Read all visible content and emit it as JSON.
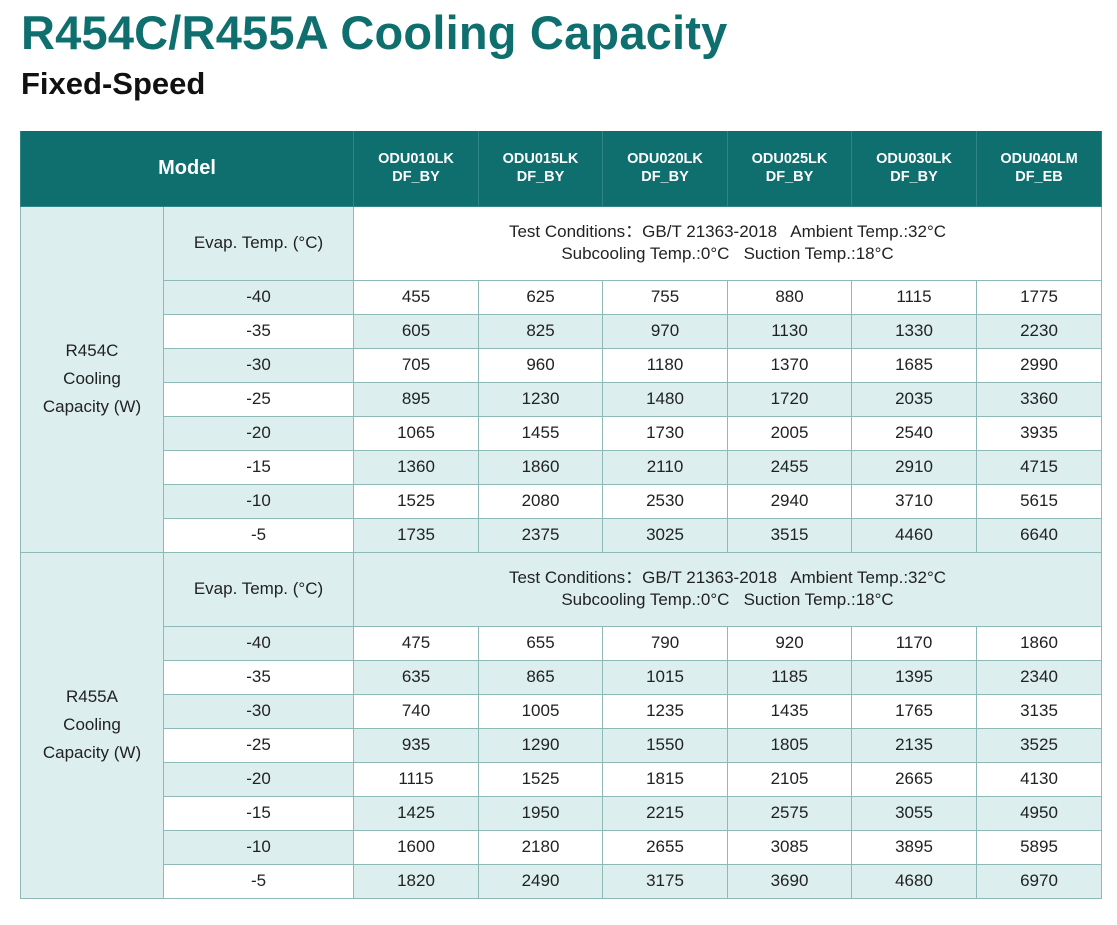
{
  "title": "R454C/R455A Cooling Capacity",
  "subtitle": "Fixed-Speed",
  "table": {
    "model_label": "Model",
    "models": [
      {
        "line1": "ODU010LK",
        "line2": "DF_BY"
      },
      {
        "line1": "ODU015LK",
        "line2": "DF_BY"
      },
      {
        "line1": "ODU020LK",
        "line2": "DF_BY"
      },
      {
        "line1": "ODU025LK",
        "line2": "DF_BY"
      },
      {
        "line1": "ODU030LK",
        "line2": "DF_BY"
      },
      {
        "line1": "ODU040LM",
        "line2": "DF_EB"
      }
    ],
    "groups": [
      {
        "label_lines": [
          "R454C",
          "Cooling",
          "Capacity (W)"
        ],
        "evap_label": "Evap. Temp. (°C)",
        "conditions_line1": "Test Conditions：GB/T 21363-2018   Ambient Temp.:32°C",
        "conditions_line2": "Subcooling Temp.:0°C   Suction Temp.:18°C",
        "rows": [
          {
            "temp": "-40",
            "values": [
              "455",
              "625",
              "755",
              "880",
              "1115",
              "1775"
            ]
          },
          {
            "temp": "-35",
            "values": [
              "605",
              "825",
              "970",
              "1130",
              "1330",
              "2230"
            ]
          },
          {
            "temp": "-30",
            "values": [
              "705",
              "960",
              "1180",
              "1370",
              "1685",
              "2990"
            ]
          },
          {
            "temp": "-25",
            "values": [
              "895",
              "1230",
              "1480",
              "1720",
              "2035",
              "3360"
            ]
          },
          {
            "temp": "-20",
            "values": [
              "1065",
              "1455",
              "1730",
              "2005",
              "2540",
              "3935"
            ]
          },
          {
            "temp": "-15",
            "values": [
              "1360",
              "1860",
              "2110",
              "2455",
              "2910",
              "4715"
            ]
          },
          {
            "temp": "-10",
            "values": [
              "1525",
              "2080",
              "2530",
              "2940",
              "3710",
              "5615"
            ]
          },
          {
            "temp": "-5",
            "values": [
              "1735",
              "2375",
              "3025",
              "3515",
              "4460",
              "6640"
            ]
          }
        ]
      },
      {
        "label_lines": [
          "R455A",
          "Cooling",
          "Capacity (W)"
        ],
        "evap_label": "Evap. Temp. (°C)",
        "conditions_line1": "Test Conditions：GB/T 21363-2018   Ambient Temp.:32°C",
        "conditions_line2": "Subcooling Temp.:0°C   Suction Temp.:18°C",
        "rows": [
          {
            "temp": "-40",
            "values": [
              "475",
              "655",
              "790",
              "920",
              "1170",
              "1860"
            ]
          },
          {
            "temp": "-35",
            "values": [
              "635",
              "865",
              "1015",
              "1185",
              "1395",
              "2340"
            ]
          },
          {
            "temp": "-30",
            "values": [
              "740",
              "1005",
              "1235",
              "1435",
              "1765",
              "3135"
            ]
          },
          {
            "temp": "-25",
            "values": [
              "935",
              "1290",
              "1550",
              "1805",
              "2135",
              "3525"
            ]
          },
          {
            "temp": "-20",
            "values": [
              "1115",
              "1525",
              "1815",
              "2105",
              "2665",
              "4130"
            ]
          },
          {
            "temp": "-15",
            "values": [
              "1425",
              "1950",
              "2215",
              "2575",
              "3055",
              "4950"
            ]
          },
          {
            "temp": "-10",
            "values": [
              "1600",
              "2180",
              "2655",
              "3085",
              "3895",
              "5895"
            ]
          },
          {
            "temp": "-5",
            "values": [
              "1820",
              "2490",
              "3175",
              "3690",
              "4680",
              "6970"
            ]
          }
        ]
      }
    ]
  },
  "colors": {
    "brand_teal": "#0e6f6e",
    "light_teal_fill": "#dcefee",
    "border": "#8fb9b7"
  }
}
